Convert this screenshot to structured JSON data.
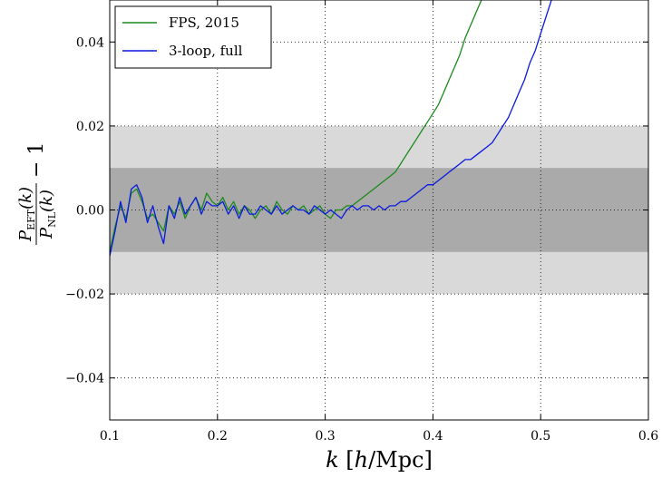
{
  "chart_data": {
    "type": "line",
    "title": "",
    "xlabel": "k [h/Mpc]",
    "ylabel": "P_EFT(k) / P_NL(k) − 1",
    "ylabel_parts": {
      "numerator_symbol": "P",
      "numerator_subscript": "EFT",
      "numerator_arg": "(k)",
      "denominator_symbol": "P",
      "denominator_subscript": "NL",
      "denominator_arg": "(k)",
      "suffix": "− 1"
    },
    "xlim": [
      0.1,
      0.6
    ],
    "ylim": [
      -0.05,
      0.05
    ],
    "x_ticks": [
      0.1,
      0.2,
      0.3,
      0.4,
      0.5,
      0.6
    ],
    "x_tick_labels": [
      "0.1",
      "0.2",
      "0.3",
      "0.4",
      "0.5",
      "0.6"
    ],
    "y_ticks": [
      -0.04,
      -0.02,
      0.0,
      0.02,
      0.04
    ],
    "y_tick_labels": [
      "−0.04",
      "−0.02",
      "0.00",
      "0.02",
      "0.04"
    ],
    "grid": true,
    "grid_style": "dotted",
    "legend_position": "top-left",
    "bands": [
      {
        "y_low": -0.02,
        "y_high": 0.02,
        "color": "#d9d9d9"
      },
      {
        "y_low": -0.01,
        "y_high": 0.01,
        "color": "#aaaaaa"
      }
    ],
    "series": [
      {
        "name": "FPS, 2015",
        "color": "#1a8a1a",
        "x": [
          0.1,
          0.105,
          0.11,
          0.115,
          0.12,
          0.125,
          0.13,
          0.135,
          0.14,
          0.145,
          0.15,
          0.155,
          0.16,
          0.165,
          0.17,
          0.175,
          0.18,
          0.185,
          0.19,
          0.195,
          0.2,
          0.205,
          0.21,
          0.215,
          0.22,
          0.225,
          0.23,
          0.235,
          0.24,
          0.245,
          0.25,
          0.255,
          0.26,
          0.265,
          0.27,
          0.275,
          0.28,
          0.285,
          0.29,
          0.295,
          0.3,
          0.305,
          0.31,
          0.315,
          0.32,
          0.325,
          0.33,
          0.335,
          0.34,
          0.345,
          0.35,
          0.355,
          0.36,
          0.365,
          0.37,
          0.375,
          0.38,
          0.385,
          0.39,
          0.395,
          0.4,
          0.405,
          0.41,
          0.415,
          0.42,
          0.425,
          0.43,
          0.435,
          0.44,
          0.445
        ],
        "y": [
          -0.01,
          -0.004,
          0.001,
          -0.002,
          0.004,
          0.005,
          0.002,
          -0.002,
          -0.001,
          -0.003,
          -0.005,
          0.001,
          -0.001,
          0.002,
          -0.002,
          0.001,
          0.003,
          0.0,
          0.004,
          0.002,
          0.001,
          0.003,
          0.0,
          0.002,
          -0.001,
          0.001,
          0.0,
          -0.002,
          0.0,
          0.001,
          -0.001,
          0.002,
          0.0,
          -0.001,
          0.001,
          0.0,
          0.001,
          -0.001,
          0.0,
          0.001,
          -0.001,
          -0.002,
          0.0,
          0.0,
          0.001,
          0.001,
          0.002,
          0.003,
          0.004,
          0.005,
          0.006,
          0.007,
          0.008,
          0.009,
          0.011,
          0.013,
          0.015,
          0.017,
          0.019,
          0.021,
          0.023,
          0.025,
          0.028,
          0.031,
          0.034,
          0.037,
          0.041,
          0.044,
          0.047,
          0.05
        ]
      },
      {
        "name": "3-loop, full",
        "color": "#0a1adf",
        "x": [
          0.1,
          0.105,
          0.11,
          0.115,
          0.12,
          0.125,
          0.13,
          0.135,
          0.14,
          0.145,
          0.15,
          0.155,
          0.16,
          0.165,
          0.17,
          0.175,
          0.18,
          0.185,
          0.19,
          0.195,
          0.2,
          0.205,
          0.21,
          0.215,
          0.22,
          0.225,
          0.23,
          0.235,
          0.24,
          0.245,
          0.25,
          0.255,
          0.26,
          0.265,
          0.27,
          0.275,
          0.28,
          0.285,
          0.29,
          0.295,
          0.3,
          0.305,
          0.31,
          0.315,
          0.32,
          0.325,
          0.33,
          0.335,
          0.34,
          0.345,
          0.35,
          0.355,
          0.36,
          0.365,
          0.37,
          0.375,
          0.38,
          0.385,
          0.39,
          0.395,
          0.4,
          0.405,
          0.41,
          0.415,
          0.42,
          0.425,
          0.43,
          0.435,
          0.44,
          0.445,
          0.45,
          0.455,
          0.46,
          0.465,
          0.47,
          0.475,
          0.48,
          0.485,
          0.49,
          0.495,
          0.5,
          0.505,
          0.51
        ],
        "y": [
          -0.011,
          -0.005,
          0.002,
          -0.003,
          0.005,
          0.006,
          0.003,
          -0.003,
          0.001,
          -0.004,
          -0.008,
          0.001,
          -0.002,
          0.003,
          -0.001,
          0.001,
          0.003,
          -0.001,
          0.002,
          0.001,
          0.001,
          0.002,
          -0.001,
          0.001,
          -0.002,
          0.001,
          -0.001,
          -0.001,
          0.001,
          0.0,
          -0.001,
          0.001,
          -0.001,
          0.0,
          0.001,
          0.0,
          0.0,
          -0.001,
          0.001,
          0.0,
          -0.001,
          0.0,
          -0.001,
          -0.002,
          0.0,
          0.001,
          0.0,
          0.001,
          0.001,
          0.0,
          0.001,
          0.0,
          0.001,
          0.001,
          0.002,
          0.002,
          0.003,
          0.004,
          0.005,
          0.006,
          0.006,
          0.007,
          0.008,
          0.009,
          0.01,
          0.011,
          0.012,
          0.012,
          0.013,
          0.014,
          0.015,
          0.016,
          0.018,
          0.02,
          0.022,
          0.025,
          0.028,
          0.031,
          0.035,
          0.038,
          0.042,
          0.046,
          0.05
        ]
      }
    ]
  }
}
